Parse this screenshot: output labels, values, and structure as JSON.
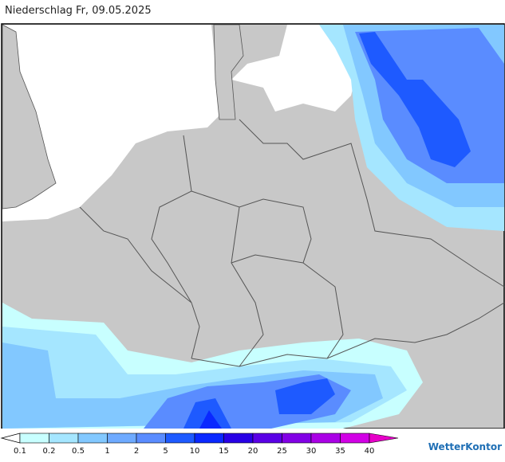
{
  "header": {
    "title": "Niederschlag Fr, 09.05.2025"
  },
  "legend": {
    "labels": [
      "0.1",
      "0.2",
      "0.5",
      "1",
      "2",
      "5",
      "10",
      "15",
      "20",
      "25",
      "30",
      "35",
      "40"
    ],
    "colors": [
      "#c8ffff",
      "#a5e6ff",
      "#82c8ff",
      "#6eaaff",
      "#5a8cff",
      "#1e5aff",
      "#0a28ff",
      "#2800e6",
      "#5a00e6",
      "#8200e6",
      "#aa00e6",
      "#d200e6",
      "#e600c8"
    ]
  },
  "logo": "WetterKontor"
}
